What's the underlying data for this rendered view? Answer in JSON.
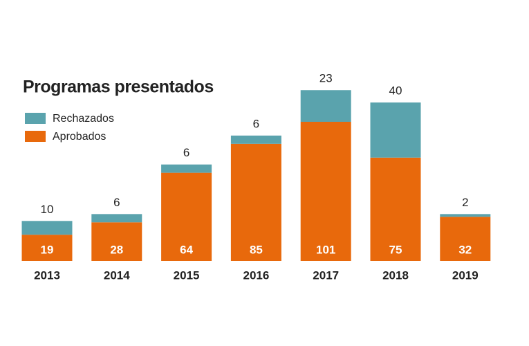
{
  "chart_data": {
    "type": "stacked-bar",
    "title": "Programas presentados",
    "categories": [
      "2013",
      "2014",
      "2015",
      "2016",
      "2017",
      "2018",
      "2019"
    ],
    "series": [
      {
        "name": "Aprobados",
        "color": "#e8690c",
        "values": [
          19,
          28,
          64,
          85,
          101,
          75,
          32
        ]
      },
      {
        "name": "Rechazados",
        "color": "#5aa3ad",
        "values": [
          10,
          6,
          6,
          6,
          23,
          40,
          2
        ]
      }
    ],
    "legend": "top-left"
  }
}
